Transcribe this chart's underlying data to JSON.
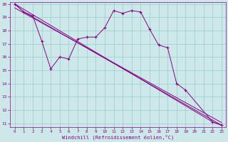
{
  "xlabel": "Windchill (Refroidissement éolien,°C)",
  "background_color": "#cce8e8",
  "grid_color": "#99cccc",
  "line_color": "#880088",
  "xlim": [
    -0.5,
    23.5
  ],
  "ylim": [
    10.7,
    20.15
  ],
  "xticks": [
    0,
    1,
    2,
    3,
    4,
    5,
    6,
    7,
    8,
    9,
    10,
    11,
    12,
    13,
    14,
    15,
    16,
    17,
    18,
    19,
    20,
    21,
    22,
    23
  ],
  "yticks": [
    11,
    12,
    13,
    14,
    15,
    16,
    17,
    18,
    19,
    20
  ],
  "line1_x": [
    0,
    1,
    2,
    3,
    4,
    5,
    6,
    7,
    8,
    9,
    10,
    11,
    12,
    13,
    14,
    15,
    16,
    17,
    18,
    19,
    22,
    23
  ],
  "line1_y": [
    20.0,
    19.4,
    19.1,
    17.2,
    15.1,
    16.0,
    15.85,
    17.35,
    17.5,
    17.5,
    18.2,
    19.5,
    19.3,
    19.5,
    19.4,
    18.1,
    16.9,
    16.7,
    14.0,
    13.5,
    11.1,
    10.85
  ],
  "line2_x": [
    0,
    1,
    23
  ],
  "line2_y": [
    20.0,
    19.4,
    10.85
  ],
  "line3_x": [
    0,
    22,
    23
  ],
  "line3_y": [
    20.0,
    11.1,
    10.85
  ]
}
